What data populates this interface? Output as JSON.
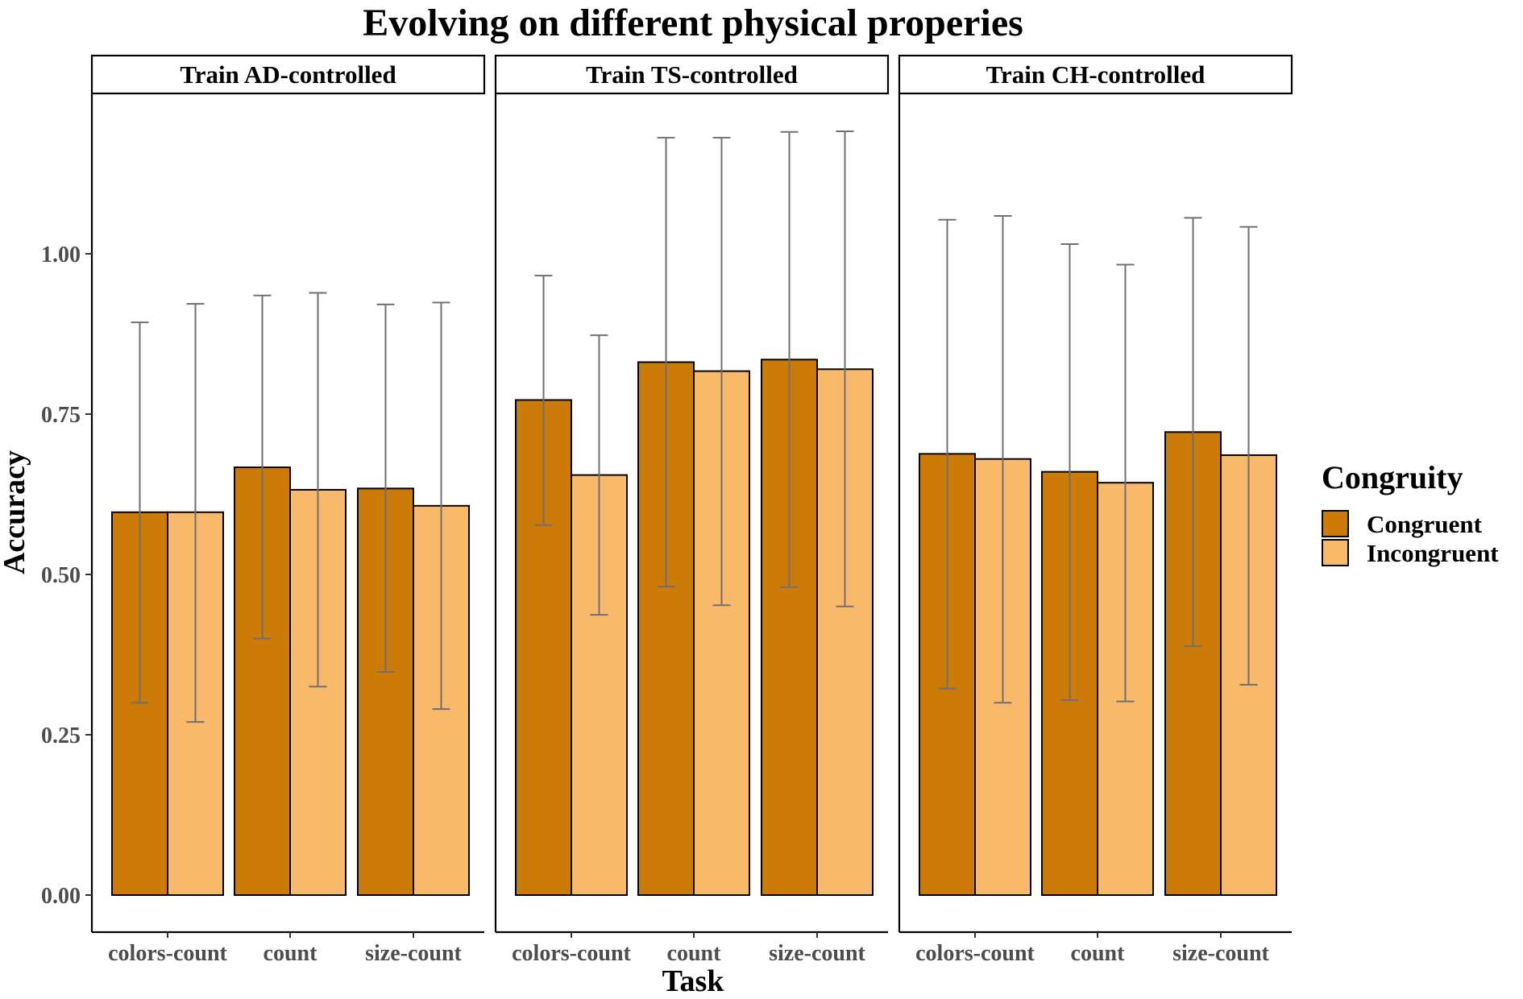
{
  "chart_data": {
    "type": "bar",
    "title": "Evolving on different physical properies",
    "xlabel": "Task",
    "ylabel": "Accuracy",
    "ylim": [
      0,
      1.2
    ],
    "y_ticks": [
      0,
      0.25,
      0.5,
      0.75,
      1.0
    ],
    "y_tick_labels": [
      "0.00",
      "0.25",
      "0.50",
      "0.75",
      "1.00"
    ],
    "categories": [
      "colors-count",
      "count",
      "size-count"
    ],
    "legend": {
      "title": "Congruity",
      "position": "right",
      "entries": [
        {
          "name": "Congruent",
          "color": "#cc7a08"
        },
        {
          "name": "Incongruent",
          "color": "#f8b96b"
        }
      ]
    },
    "grid": false,
    "facets": [
      {
        "label": "Train AD-controlled",
        "series": [
          {
            "name": "Congruent",
            "values": [
              0.597,
              0.667,
              0.634
            ],
            "err_low": [
              0.3,
              0.4,
              0.348
            ],
            "err_high": [
              0.893,
              0.935,
              0.921
            ]
          },
          {
            "name": "Incongruent",
            "values": [
              0.597,
              0.632,
              0.607
            ],
            "err_low": [
              0.27,
              0.325,
              0.29
            ],
            "err_high": [
              0.922,
              0.939,
              0.924
            ]
          }
        ]
      },
      {
        "label": "Train TS-controlled",
        "series": [
          {
            "name": "Congruent",
            "values": [
              0.772,
              0.831,
              0.835
            ],
            "err_low": [
              0.577,
              0.481,
              0.48
            ],
            "err_high": [
              0.966,
              1.181,
              1.19
            ]
          },
          {
            "name": "Incongruent",
            "values": [
              0.655,
              0.817,
              0.82
            ],
            "err_low": [
              0.437,
              0.452,
              0.45
            ],
            "err_high": [
              0.873,
              1.181,
              1.191
            ]
          }
        ]
      },
      {
        "label": "Train CH-controlled",
        "series": [
          {
            "name": "Congruent",
            "values": [
              0.688,
              0.66,
              0.722
            ],
            "err_low": [
              0.322,
              0.304,
              0.388
            ],
            "err_high": [
              1.053,
              1.015,
              1.056
            ]
          },
          {
            "name": "Incongruent",
            "values": [
              0.68,
              0.643,
              0.686
            ],
            "err_low": [
              0.3,
              0.302,
              0.328
            ],
            "err_high": [
              1.059,
              0.983,
              1.042
            ]
          }
        ]
      }
    ]
  }
}
